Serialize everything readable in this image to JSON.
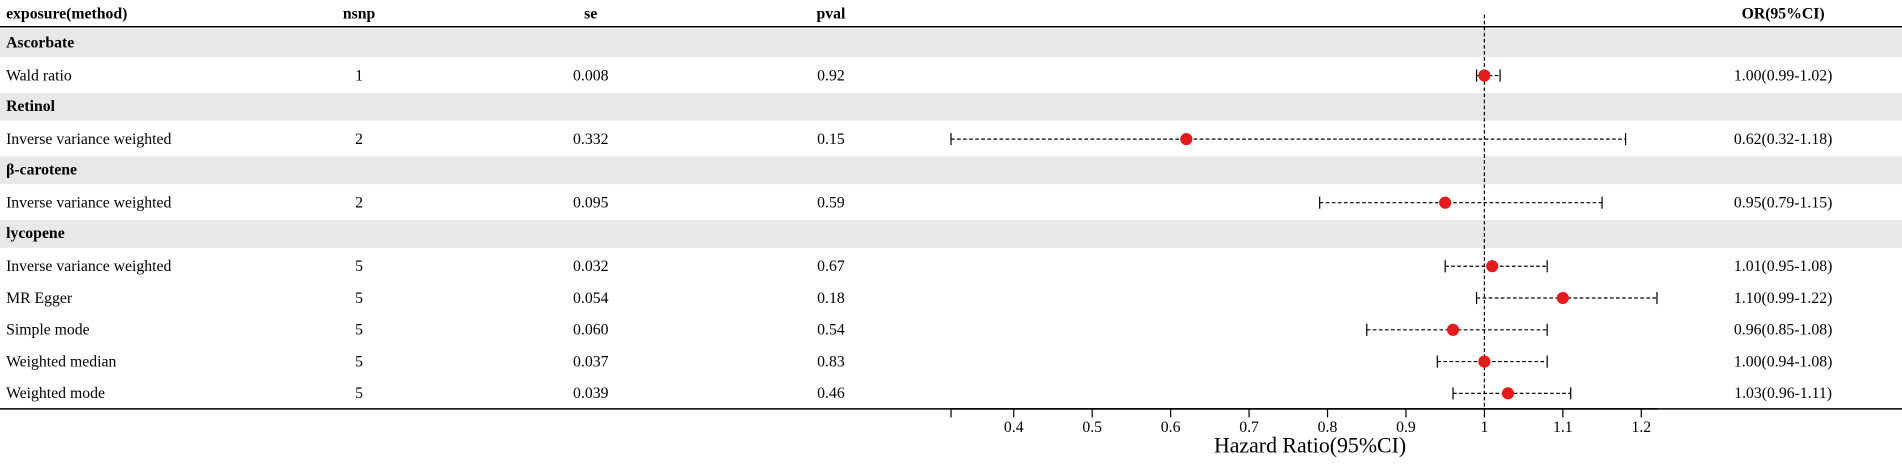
{
  "chart_data": {
    "type": "forest",
    "headers": {
      "exposure": "exposure(method)",
      "nsnp": "nsnp",
      "se": "se",
      "pval": "pval",
      "or": "OR(95%CI)"
    },
    "xlabel": "Hazard Ratio(95%CI)",
    "reference": 1.0,
    "xlim": [
      0.32,
      1.22
    ],
    "xticks": [
      0.4,
      0.5,
      0.6,
      0.7,
      0.8,
      0.9,
      1.0,
      1.1,
      1.2
    ],
    "color": "#e41a1c",
    "groups": [
      {
        "name": "Ascorbate",
        "rows": [
          {
            "method": "Wald ratio",
            "nsnp": 1,
            "se": "0.008",
            "pval": "0.92",
            "or": 1.0,
            "lower": 0.99,
            "upper": 1.02,
            "label": "1.00(0.99-1.02)"
          }
        ]
      },
      {
        "name": "Retinol",
        "rows": [
          {
            "method": "Inverse variance weighted",
            "nsnp": 2,
            "se": "0.332",
            "pval": "0.15",
            "or": 0.62,
            "lower": 0.32,
            "upper": 1.18,
            "label": "0.62(0.32-1.18)"
          }
        ]
      },
      {
        "name": "β-carotene",
        "rows": [
          {
            "method": "Inverse variance weighted",
            "nsnp": 2,
            "se": "0.095",
            "pval": "0.59",
            "or": 0.95,
            "lower": 0.79,
            "upper": 1.15,
            "label": "0.95(0.79-1.15)"
          }
        ]
      },
      {
        "name": "lycopene",
        "rows": [
          {
            "method": "Inverse variance weighted",
            "nsnp": 5,
            "se": "0.032",
            "pval": "0.67",
            "or": 1.01,
            "lower": 0.95,
            "upper": 1.08,
            "label": "1.01(0.95-1.08)"
          },
          {
            "method": "MR Egger",
            "nsnp": 5,
            "se": "0.054",
            "pval": "0.18",
            "or": 1.1,
            "lower": 0.99,
            "upper": 1.22,
            "label": "1.10(0.99-1.22)"
          },
          {
            "method": "Simple mode",
            "nsnp": 5,
            "se": "0.060",
            "pval": "0.54",
            "or": 0.96,
            "lower": 0.85,
            "upper": 1.08,
            "label": "0.96(0.85-1.08)"
          },
          {
            "method": "Weighted median",
            "nsnp": 5,
            "se": "0.037",
            "pval": "0.83",
            "or": 1.0,
            "lower": 0.94,
            "upper": 1.08,
            "label": "1.00(0.94-1.08)"
          },
          {
            "method": "Weighted mode",
            "nsnp": 5,
            "se": "0.039",
            "pval": "0.46",
            "or": 1.03,
            "lower": 0.96,
            "upper": 1.11,
            "label": "1.03(0.96-1.11)"
          }
        ]
      }
    ]
  }
}
